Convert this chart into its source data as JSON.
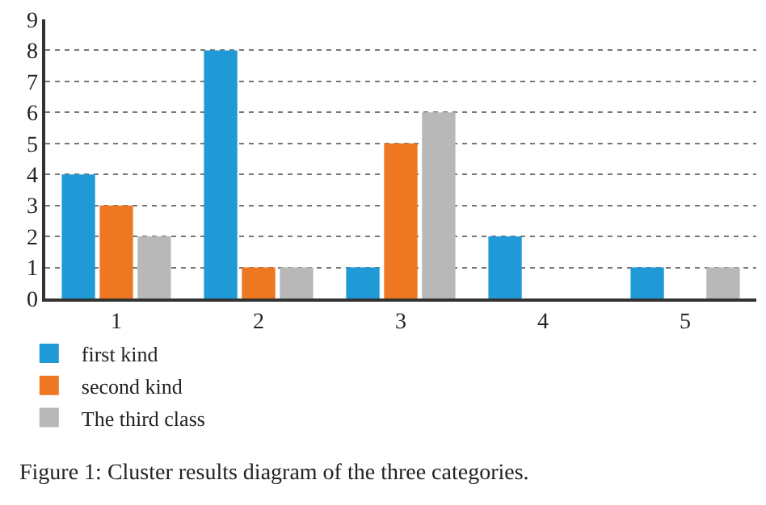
{
  "chart_data": {
    "type": "bar",
    "categories": [
      "1",
      "2",
      "3",
      "4",
      "5"
    ],
    "series": [
      {
        "name": "first kind",
        "color": "#1f9ad6",
        "values": [
          4,
          8,
          1,
          2,
          1
        ]
      },
      {
        "name": "second kind",
        "color": "#ee7722",
        "values": [
          3,
          1,
          5,
          0,
          0
        ]
      },
      {
        "name": "The third class",
        "color": "#b8b8b8",
        "values": [
          2,
          1,
          6,
          0,
          1
        ]
      }
    ],
    "ylim": [
      0,
      9
    ],
    "yticks": [
      0,
      1,
      2,
      3,
      4,
      5,
      6,
      7,
      8,
      9
    ],
    "grid": "y",
    "legend": "bottom left",
    "annotations": [
      "Figure 1: Cluster results diagram of the three categories."
    ]
  }
}
